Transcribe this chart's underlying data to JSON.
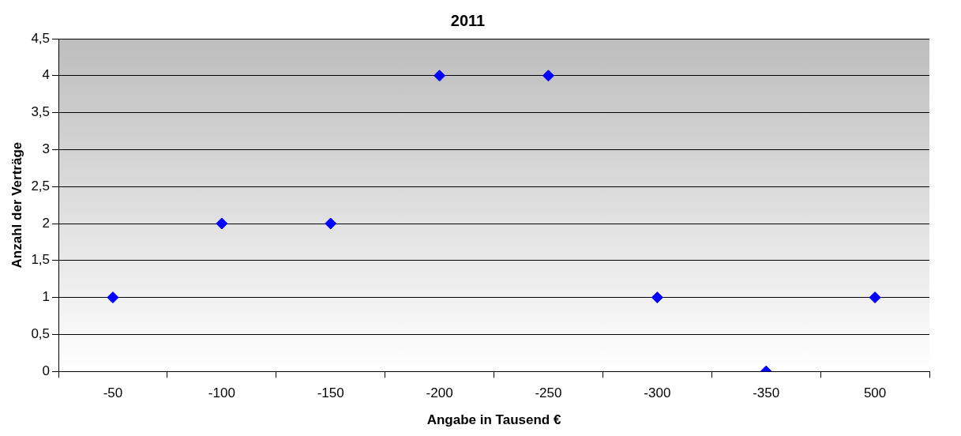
{
  "chart_data": {
    "type": "scatter",
    "title": "2011",
    "xlabel": "Angabe in Tausend €",
    "ylabel": "Anzahl der Verträge",
    "categories": [
      "-50",
      "-100",
      "-150",
      "-200",
      "-250",
      "-300",
      "-350",
      "500"
    ],
    "series": [
      {
        "color": "#0000ff",
        "values": [
          1,
          2,
          2,
          4,
          4,
          1,
          0,
          1
        ]
      }
    ],
    "ylim": [
      0,
      4.5
    ],
    "yticks": [
      0,
      {
        "value": 0.5,
        "label": "0,5"
      },
      1,
      {
        "value": 1.5,
        "label": "1,5"
      },
      2,
      {
        "value": 2.5,
        "label": "2,5"
      },
      3,
      {
        "value": 3.5,
        "label": "3,5"
      },
      4,
      {
        "value": 4.5,
        "label": "4,5"
      }
    ],
    "grid": "y",
    "legend": false,
    "marker": "diamond"
  }
}
